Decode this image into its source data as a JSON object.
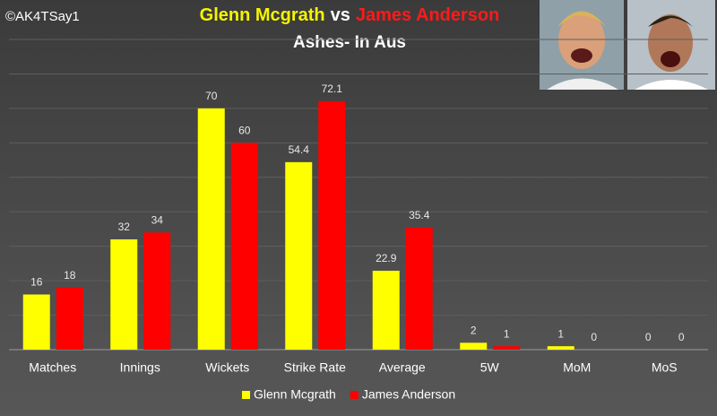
{
  "chart_data": {
    "type": "bar",
    "title_parts": [
      "Glenn Mcgrath",
      "vs",
      "James Anderson"
    ],
    "title_colors": [
      "#f5f500",
      "#ffffff",
      "#ff1a1a"
    ],
    "subtitle": "Ashes- In Aus",
    "watermark": "©AK4TSay1",
    "categories": [
      "Matches",
      "Innings",
      "Wickets",
      "Strike Rate",
      "Average",
      "5W",
      "MoM",
      "MoS"
    ],
    "series": [
      {
        "name": "Glenn Mcgrath",
        "color": "#ffff00",
        "values": [
          16,
          32,
          70,
          54.4,
          22.9,
          2,
          1,
          0
        ]
      },
      {
        "name": "James Anderson",
        "color": "#ff0000",
        "values": [
          18,
          34,
          60,
          72.1,
          35.4,
          1,
          0,
          0
        ]
      }
    ],
    "ylim": [
      0,
      90
    ],
    "yticks": [
      0,
      10,
      20,
      30,
      40,
      50,
      60,
      70,
      80,
      90
    ],
    "grid": true,
    "legend": "bottom"
  }
}
